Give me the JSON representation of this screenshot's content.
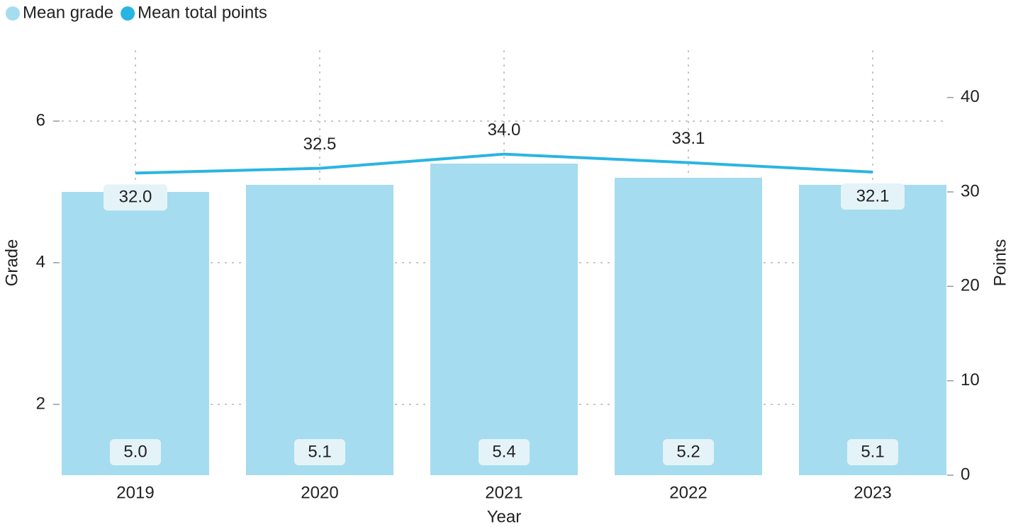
{
  "chart_data": {
    "type": "bar_line",
    "categories": [
      "2019",
      "2020",
      "2021",
      "2022",
      "2023"
    ],
    "x_label": "Year",
    "y_label": "Grade",
    "y2_label": "Points",
    "ylim": [
      1,
      7
    ],
    "yticks": [
      2,
      4,
      6
    ],
    "y2lim": [
      0,
      45
    ],
    "y2ticks": [
      0,
      10,
      20,
      30,
      40
    ],
    "grid": true,
    "legend": "top-left",
    "series": [
      {
        "name": "Mean grade",
        "color": "#a5dcef",
        "type": "bar",
        "axis": "y",
        "values": [
          5.0,
          5.1,
          5.4,
          5.2,
          5.1
        ],
        "value_labels": [
          "5.0",
          "5.1",
          "5.4",
          "5.2",
          "5.1"
        ]
      },
      {
        "name": "Mean total points",
        "color": "#29b5e3",
        "type": "line",
        "axis": "y2",
        "values": [
          32.0,
          32.5,
          34.0,
          33.1,
          32.1
        ],
        "value_labels": [
          "32.0",
          "32.5",
          "34.0",
          "33.1",
          "32.1"
        ]
      }
    ]
  }
}
